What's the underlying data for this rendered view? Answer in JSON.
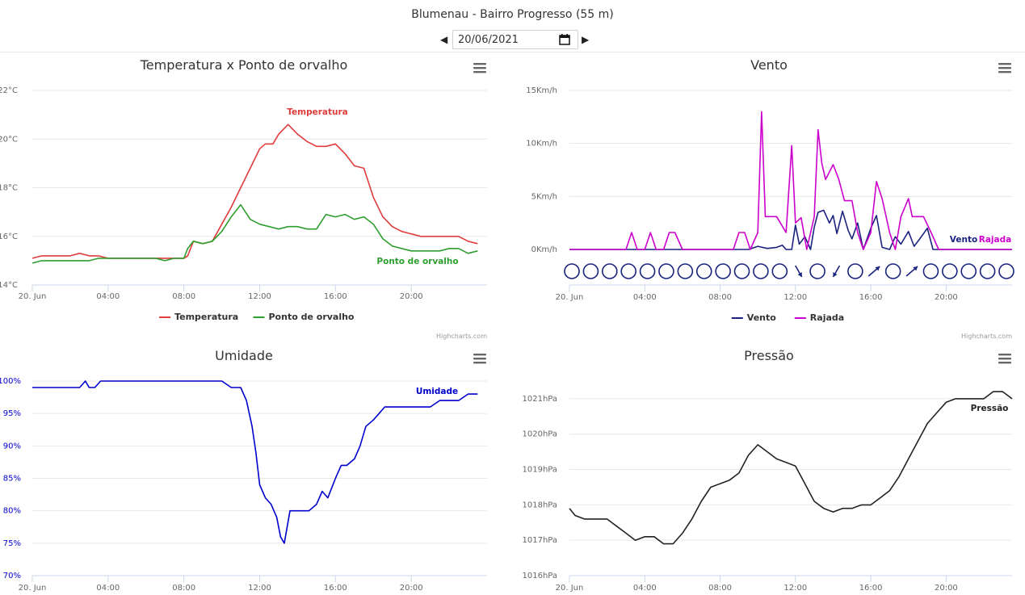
{
  "page": {
    "title": "Blumenau - Bairro Progresso (55 m)",
    "date_value": "20/06/2021",
    "prev_icon": "caret-left-icon",
    "next_icon": "caret-right-icon",
    "calendar_icon": "calendar-icon",
    "menu_icon": "hamburger-menu-icon",
    "credits": "Highcharts.com"
  },
  "chart_data": [
    {
      "id": "temp",
      "type": "line",
      "title": "Temperatura x Ponto de orvalho",
      "x_ticks": [
        "20. Jun",
        "04:00",
        "08:00",
        "12:00",
        "16:00",
        "20:00"
      ],
      "y_ticks": [
        "14°C",
        "16°C",
        "18°C",
        "20°C",
        "22°C"
      ],
      "ylim": [
        14,
        22
      ],
      "grid": true,
      "legend": "bottom-center",
      "series": [
        {
          "name": "Temperatura",
          "color": "#e03c3c",
          "x": [
            0,
            0.5,
            1,
            1.5,
            2,
            2.5,
            3,
            3.5,
            4,
            4.5,
            5,
            5.5,
            6,
            6.5,
            7,
            7.5,
            8,
            8.2,
            8.5,
            9,
            9.5,
            10,
            10.5,
            11,
            11.5,
            12,
            12.3,
            12.7,
            13,
            13.5,
            14,
            14.5,
            15,
            15.5,
            16,
            16.5,
            17,
            17.5,
            18,
            18.5,
            19,
            19.5,
            20,
            20.5,
            21,
            21.5,
            22,
            22.5,
            23,
            23.5
          ],
          "y": [
            15.1,
            15.2,
            15.2,
            15.2,
            15.2,
            15.3,
            15.2,
            15.2,
            15.1,
            15.1,
            15.1,
            15.1,
            15.1,
            15.1,
            15.1,
            15.1,
            15.1,
            15.2,
            15.8,
            15.7,
            15.8,
            16.5,
            17.2,
            18,
            18.8,
            19.6,
            19.8,
            19.8,
            20.2,
            20.6,
            20.2,
            19.9,
            19.7,
            19.7,
            19.8,
            19.4,
            18.9,
            18.8,
            17.6,
            16.8,
            16.4,
            16.2,
            16.1,
            16,
            16,
            16,
            16,
            16,
            15.8,
            15.7
          ]
        },
        {
          "name": "Ponto de orvalho",
          "color": "#2e9e2e",
          "x": [
            0,
            0.5,
            1,
            1.5,
            2,
            2.5,
            3,
            3.5,
            4,
            4.5,
            5,
            5.5,
            6,
            6.5,
            7,
            7.5,
            8,
            8.2,
            8.5,
            9,
            9.5,
            10,
            10.5,
            11,
            11.5,
            12,
            12.5,
            13,
            13.5,
            14,
            14.5,
            15,
            15.5,
            16,
            16.5,
            17,
            17.5,
            18,
            18.5,
            19,
            19.5,
            20,
            20.5,
            21,
            21.5,
            22,
            22.5,
            23,
            23.5
          ],
          "y": [
            14.9,
            15,
            15,
            15,
            15,
            15,
            15,
            15.1,
            15.1,
            15.1,
            15.1,
            15.1,
            15.1,
            15.1,
            15,
            15.1,
            15.1,
            15.5,
            15.8,
            15.7,
            15.8,
            16.2,
            16.8,
            17.3,
            16.7,
            16.5,
            16.4,
            16.3,
            16.4,
            16.4,
            16.3,
            16.3,
            16.9,
            16.8,
            16.9,
            16.7,
            16.8,
            16.5,
            15.9,
            15.6,
            15.5,
            15.4,
            15.4,
            15.4,
            15.4,
            15.5,
            15.5,
            15.3,
            15.4
          ]
        }
      ],
      "annotations": [
        "Temperatura",
        "Ponto de orvalho"
      ]
    },
    {
      "id": "wind",
      "type": "line",
      "title": "Vento",
      "x_ticks": [
        "20. Jun",
        "04:00",
        "08:00",
        "12:00",
        "16:00",
        "20:00"
      ],
      "y_ticks": [
        "0Km/h",
        "5Km/h",
        "10Km/h",
        "15Km/h"
      ],
      "ylim": [
        0,
        15
      ],
      "grid": true,
      "legend": "bottom-center",
      "series": [
        {
          "name": "Vento",
          "color": "#1a237e",
          "x": [
            0,
            9.5,
            10,
            10.5,
            11,
            11.3,
            11.5,
            11.8,
            12,
            12.2,
            12.5,
            12.8,
            13,
            13.2,
            13.5,
            13.8,
            14,
            14.2,
            14.5,
            14.8,
            15,
            15.3,
            15.6,
            16,
            16.3,
            16.6,
            17,
            17.3,
            17.6,
            18,
            18.3,
            18.6,
            19,
            19.3,
            19.6,
            20,
            23.5
          ],
          "y": [
            0,
            0,
            0.3,
            0.1,
            0.2,
            0.4,
            0,
            0,
            2.3,
            0.5,
            1.2,
            0,
            2.1,
            3.5,
            3.7,
            2.5,
            3.2,
            1.5,
            3.6,
            1.8,
            1.0,
            2.5,
            0,
            2.0,
            3.2,
            0.2,
            0,
            1.2,
            0.5,
            1.7,
            0.3,
            1.0,
            2.0,
            0,
            0,
            0,
            0
          ]
        },
        {
          "name": "Rajada",
          "color": "#cc00cc",
          "x": [
            0,
            3,
            3.3,
            3.6,
            4,
            4.3,
            4.6,
            5,
            5.3,
            5.6,
            6,
            8.7,
            9,
            9.3,
            9.6,
            10,
            10.2,
            10.4,
            10.6,
            11,
            11.5,
            11.8,
            12,
            12.3,
            12.6,
            13,
            13.2,
            13.4,
            13.6,
            14,
            14.3,
            14.6,
            15,
            15.3,
            15.6,
            16,
            16.3,
            16.6,
            17,
            17.3,
            17.6,
            18,
            18.2,
            18.5,
            18.8,
            19.2,
            19.6,
            20,
            23.5
          ],
          "y": [
            0,
            0,
            1.6,
            0,
            0,
            1.6,
            0,
            0,
            1.6,
            1.6,
            0,
            0,
            1.6,
            1.6,
            0,
            1.6,
            13,
            3.1,
            3.1,
            3.1,
            1.6,
            9.8,
            2.5,
            3.0,
            0,
            3.1,
            11.3,
            8.1,
            6.6,
            8.0,
            6.6,
            4.6,
            4.6,
            1.6,
            0,
            1.6,
            6.4,
            4.8,
            1.6,
            0,
            3.1,
            4.8,
            3.1,
            3.1,
            3.1,
            1.6,
            0,
            0,
            0
          ]
        }
      ],
      "direction_markers": [
        "circle",
        "circle",
        "circle",
        "circle",
        "circle",
        "circle",
        "circle",
        "circle",
        "circle",
        "circle",
        "circle",
        "circle",
        "arrow-se",
        "circle",
        "arrow-sw",
        "circle",
        "arrow-ne",
        "circle",
        "arrow-ne",
        "circle",
        "circle",
        "circle",
        "circle",
        "circle"
      ],
      "annotations": [
        "Vento",
        "Rajada"
      ]
    },
    {
      "id": "humid",
      "type": "line",
      "title": "Umidade",
      "x_ticks": [
        "20. Jun",
        "04:00",
        "08:00",
        "12:00",
        "16:00",
        "20:00"
      ],
      "y_ticks": [
        "70%",
        "75%",
        "80%",
        "85%",
        "90%",
        "95%",
        "100%"
      ],
      "ylim": [
        70,
        100
      ],
      "grid": true,
      "series": [
        {
          "name": "Umidade",
          "color": "#0000cc",
          "x": [
            0,
            1,
            2,
            2.5,
            2.8,
            3,
            3.3,
            3.6,
            4,
            4.5,
            5,
            6,
            7,
            8,
            9,
            9.5,
            10,
            10.5,
            11,
            11.3,
            11.6,
            11.8,
            12,
            12.3,
            12.6,
            12.9,
            13.1,
            13.3,
            13.6,
            14,
            14.3,
            14.6,
            15,
            15.3,
            15.6,
            16,
            16.3,
            16.6,
            17,
            17.3,
            17.6,
            18,
            18.3,
            18.6,
            19,
            19.5,
            20,
            20.5,
            21,
            21.5,
            22,
            22.5,
            23,
            23.5
          ],
          "y": [
            99,
            99,
            99,
            99,
            100,
            99,
            99,
            100,
            100,
            100,
            100,
            100,
            100,
            100,
            100,
            100,
            100,
            99,
            99,
            97,
            93,
            89,
            84,
            82,
            81,
            79,
            76,
            75,
            80,
            80,
            80,
            80,
            81,
            83,
            82,
            85,
            87,
            87,
            88,
            90,
            93,
            94,
            95,
            96,
            96,
            96,
            96,
            96,
            96,
            97,
            97,
            97,
            98,
            98
          ]
        }
      ],
      "annotations": [
        "Umidade"
      ]
    },
    {
      "id": "press",
      "type": "line",
      "title": "Pressão",
      "x_ticks": [
        "20. Jun",
        "04:00",
        "08:00",
        "12:00",
        "16:00",
        "20:00"
      ],
      "y_ticks": [
        "1016hPa",
        "1017hPa",
        "1018hPa",
        "1019hPa",
        "1020hPa",
        "1021hPa"
      ],
      "ylim": [
        1016,
        1021.5
      ],
      "grid": true,
      "series": [
        {
          "name": "Pressão",
          "color": "#222222",
          "x": [
            0,
            0.3,
            0.8,
            1.3,
            2,
            2.5,
            3,
            3.5,
            4,
            4.5,
            5,
            5.5,
            6,
            6.5,
            7,
            7.5,
            8,
            8.5,
            9,
            9.5,
            10,
            10.5,
            11,
            11.5,
            12,
            12.5,
            13,
            13.5,
            14,
            14.5,
            15,
            15.5,
            16,
            16.5,
            17,
            17.5,
            18,
            18.5,
            19,
            19.5,
            20,
            20.5,
            21,
            21.5,
            22,
            22.5,
            23,
            23.5
          ],
          "y": [
            1017.9,
            1017.7,
            1017.6,
            1017.6,
            1017.6,
            1017.4,
            1017.2,
            1017,
            1017.1,
            1017.1,
            1016.9,
            1016.9,
            1017.2,
            1017.6,
            1018.1,
            1018.5,
            1018.6,
            1018.7,
            1018.9,
            1019.4,
            1019.7,
            1019.5,
            1019.3,
            1019.2,
            1019.1,
            1018.6,
            1018.1,
            1017.9,
            1017.8,
            1017.9,
            1017.9,
            1018,
            1018,
            1018.2,
            1018.4,
            1018.8,
            1019.3,
            1019.8,
            1020.3,
            1020.6,
            1020.9,
            1021,
            1021,
            1021,
            1021,
            1021.2,
            1021.2,
            1021
          ]
        }
      ],
      "annotations": [
        "Pressão"
      ]
    }
  ]
}
